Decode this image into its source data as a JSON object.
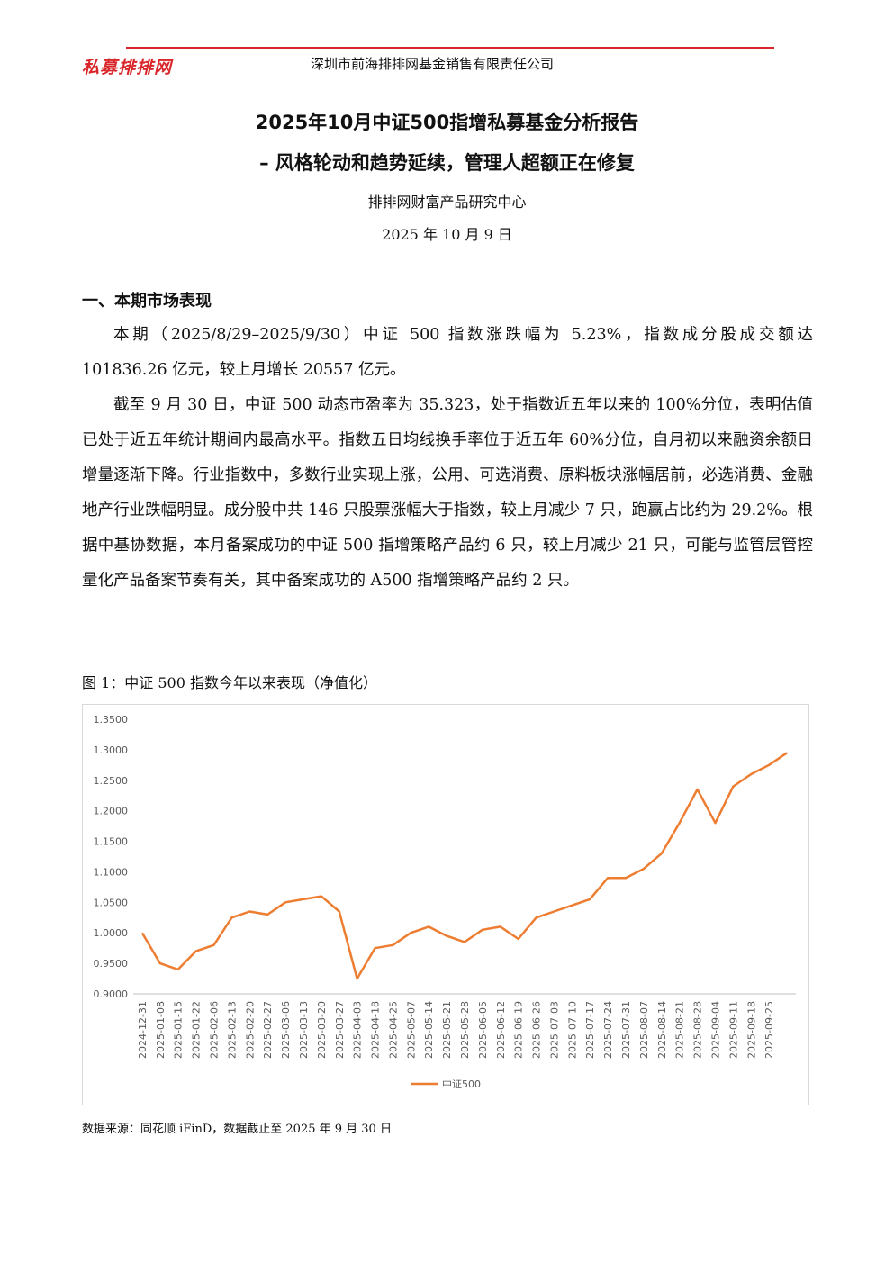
{
  "header": {
    "logo": "私募排排网",
    "company": "深圳市前海排排网基金销售有限责任公司"
  },
  "title": {
    "line1": "2025年10月中证500指增私募基金分析报告",
    "line2": "–  风格轮动和趋势延续，管理人超额正在修复"
  },
  "organization": "排排网财富产品研究中心",
  "date": "2025 年 10 月 9 日",
  "section": {
    "heading": "一、本期市场表现",
    "paragraphs": [
      "本期（2025/8/29–2025/9/30）中证 500 指数涨跌幅为 5.23%，指数成分股成交额达 101836.26 亿元，较上月增长 20557 亿元。",
      "截至 9 月 30 日，中证 500 动态市盈率为 35.323，处于指数近五年以来的 100%分位，表明估值已处于近五年统计期间内最高水平。指数五日均线换手率位于近五年 60%分位，自月初以来融资余额日增量逐渐下降。行业指数中，多数行业实现上涨，公用、可选消费、原料板块涨幅居前，必选消费、金融地产行业跌幅明显。成分股中共 146 只股票涨幅大于指数，较上月减少 7 只，跑赢占比约为 29.2%。根据中基协数据，本月备案成功的中证 500 指增策略产品约 6 只，较上月减少 21 只，可能与监管层管控量化产品备案节奏有关，其中备案成功的 A500 指增策略产品约 2 只。"
    ]
  },
  "figure_caption": "图 1：中证 500 指数今年以来表现（净值化）",
  "source_note": "数据来源：同花顺 iFinD，数据截止至 2025 年 9 月 30 日",
  "chart_data": {
    "type": "line",
    "categories": [
      "2024-12-31",
      "2025-01-08",
      "2025-01-15",
      "2025-01-22",
      "2025-02-06",
      "2025-02-13",
      "2025-02-20",
      "2025-02-27",
      "2025-03-06",
      "2025-03-13",
      "2025-03-20",
      "2025-03-27",
      "2025-04-03",
      "2025-04-18",
      "2025-04-25",
      "2025-05-07",
      "2025-05-14",
      "2025-05-21",
      "2025-05-28",
      "2025-06-05",
      "2025-06-12",
      "2025-06-19",
      "2025-06-26",
      "2025-07-03",
      "2025-07-10",
      "2025-07-17",
      "2025-07-24",
      "2025-07-31",
      "2025-08-07",
      "2025-08-14",
      "2025-08-21",
      "2025-08-28",
      "2025-09-04",
      "2025-09-11",
      "2025-09-18",
      "2025-09-25",
      null
    ],
    "series": [
      {
        "name": "中证500",
        "color": "#ed7d31",
        "values": [
          1.0,
          0.95,
          0.94,
          0.97,
          0.98,
          1.025,
          1.035,
          1.03,
          1.05,
          1.055,
          1.06,
          1.035,
          0.925,
          0.975,
          0.98,
          1.0,
          1.01,
          0.995,
          0.985,
          1.005,
          1.01,
          0.99,
          1.025,
          1.035,
          1.045,
          1.055,
          1.09,
          1.09,
          1.105,
          1.13,
          1.18,
          1.235,
          1.18,
          1.24,
          1.26,
          1.275,
          1.295
        ]
      }
    ],
    "ylim": [
      0.9,
      1.35
    ],
    "yticks": [
      {
        "value": 0.9,
        "label": "0.9000"
      },
      {
        "value": 0.95,
        "label": "0.9500"
      },
      {
        "value": 1.0,
        "label": "1.0000"
      },
      {
        "value": 1.05,
        "label": "1.0500"
      },
      {
        "value": 1.1,
        "label": "1.1000"
      },
      {
        "value": 1.15,
        "label": "1.1500"
      },
      {
        "value": 1.2,
        "label": "1.2000"
      },
      {
        "value": 1.25,
        "label": "1.2500"
      },
      {
        "value": 1.3,
        "label": "1.3000"
      },
      {
        "value": 1.35,
        "label": "1.3500"
      }
    ],
    "grid": false
  }
}
